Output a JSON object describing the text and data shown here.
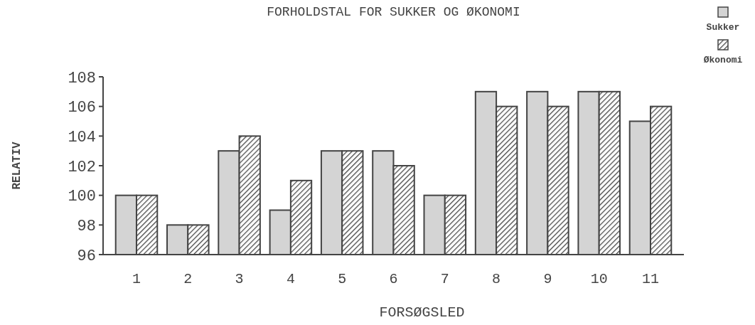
{
  "chart_data": {
    "type": "bar",
    "title": "FORHOLDSTAL FOR SUKKER OG ØKONOMI",
    "xlabel": "FORSØGSLED",
    "ylabel": "RELATIV",
    "categories": [
      "1",
      "2",
      "3",
      "4",
      "5",
      "6",
      "7",
      "8",
      "9",
      "10",
      "11"
    ],
    "series": [
      {
        "name": "Sukker",
        "color": "#d4d4d4",
        "values": [
          100,
          98,
          103,
          99,
          103,
          103,
          100,
          107,
          107,
          107,
          105
        ]
      },
      {
        "name": "Økonomi",
        "color": "#444444",
        "values": [
          100,
          98,
          104,
          101,
          103,
          102,
          100,
          106,
          106,
          107,
          106
        ]
      }
    ],
    "ylim": [
      96,
      108
    ],
    "yticks": [
      96,
      98,
      100,
      102,
      104,
      106,
      108
    ],
    "grid": false,
    "legend": "top right"
  }
}
